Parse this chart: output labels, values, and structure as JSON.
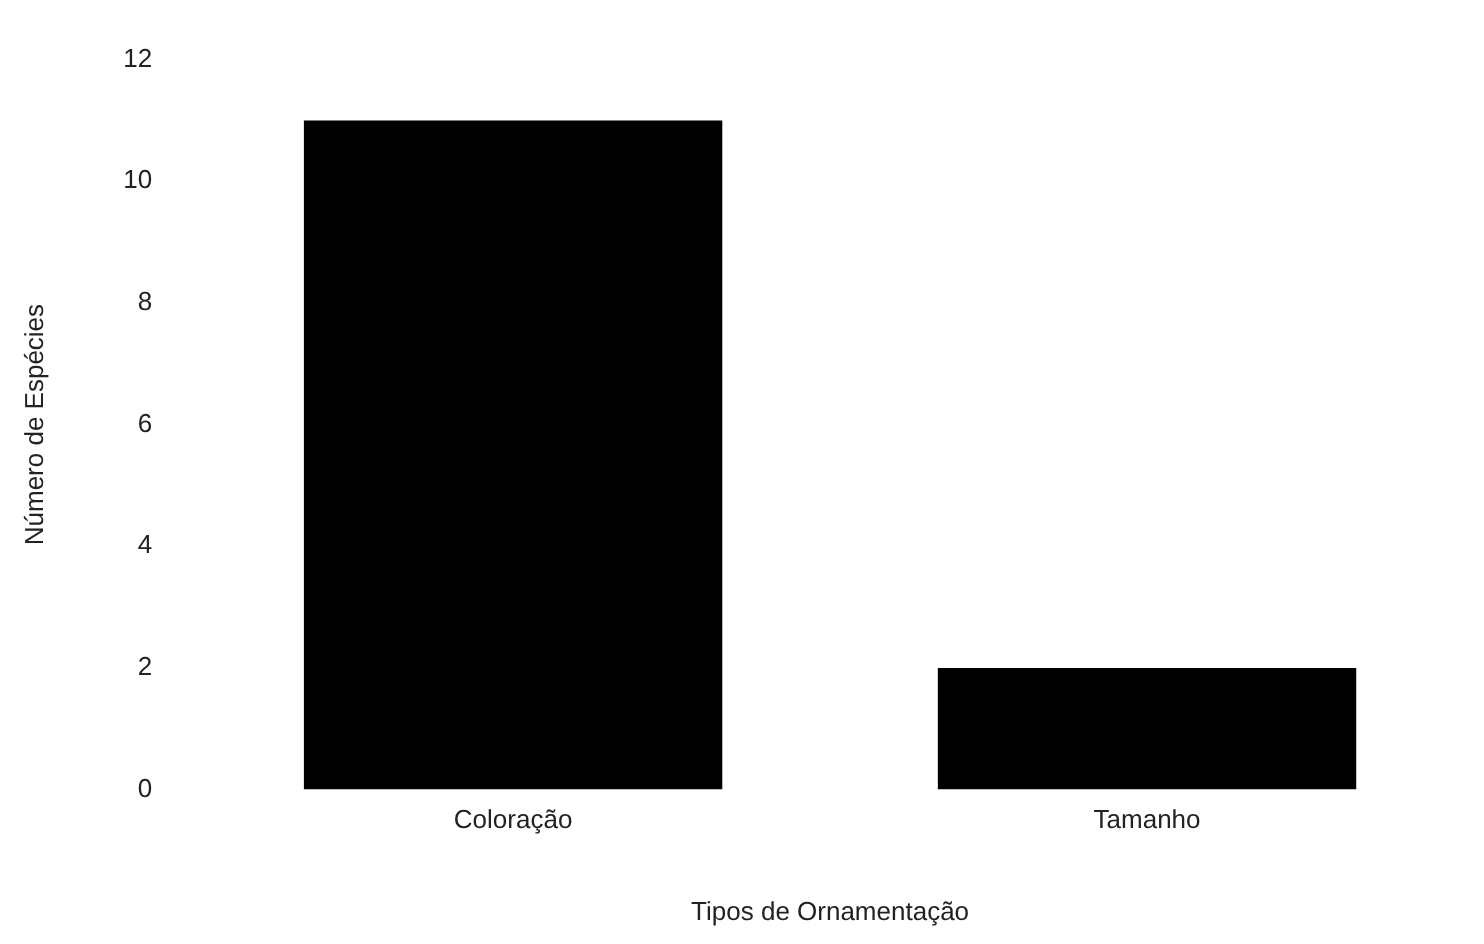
{
  "chart_data": {
    "type": "bar",
    "xlabel": "Tipos de Ornamentação",
    "ylabel": "Número de Espécies",
    "categories": [
      "Coloração",
      "Tamanho"
    ],
    "values": [
      11,
      2
    ],
    "color": "#000000",
    "ylim": [
      0,
      12
    ],
    "yticks": [
      0,
      2,
      4,
      6,
      8,
      10,
      12
    ],
    "grid": false,
    "legend": false
  }
}
